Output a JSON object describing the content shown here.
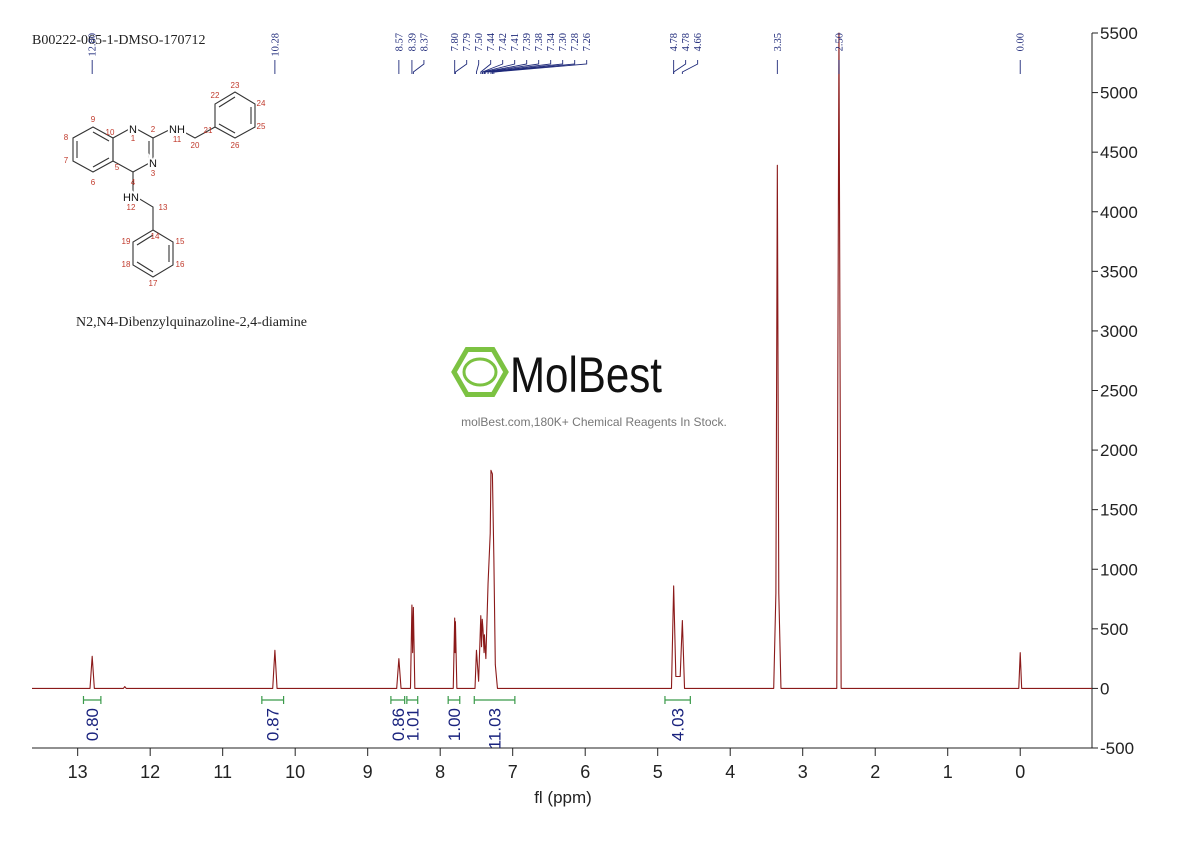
{
  "chart_data": {
    "type": "nmr",
    "title": "B00222-065-1-DMSO-170712",
    "subtitle": "N2,N4-Dibenzylquinazoline-2,4-diamine",
    "x_label": "fl (ppm)",
    "xlim": [
      13.63,
      -0.99
    ],
    "ylim": [
      -500,
      5500
    ],
    "xticks": [
      13,
      12,
      11,
      10,
      9,
      8,
      7,
      6,
      5,
      4,
      3,
      2,
      1,
      0
    ],
    "yticks": [
      -500,
      0,
      500,
      1000,
      1500,
      2000,
      2500,
      3000,
      3500,
      4000,
      4500,
      5000,
      5500
    ],
    "color": "#8b1a1a",
    "x": [
      13.63,
      12.83,
      12.8,
      12.77,
      12.37,
      12.35,
      12.33,
      10.31,
      10.28,
      10.25,
      8.6,
      8.57,
      8.54,
      8.41,
      8.39,
      8.38,
      8.37,
      8.35,
      7.82,
      7.8,
      7.795,
      7.79,
      7.77,
      7.52,
      7.5,
      7.47,
      7.44,
      7.43,
      7.42,
      7.41,
      7.395,
      7.39,
      7.37,
      7.34,
      7.31,
      7.3,
      7.28,
      7.26,
      7.24,
      7.21,
      4.81,
      4.78,
      4.75,
      4.69,
      4.66,
      4.63,
      3.4,
      3.37,
      3.35,
      3.33,
      3.3,
      2.53,
      2.5,
      2.47,
      0.02,
      0,
      -0.02,
      -0.99
    ],
    "values": [
      0,
      0,
      270,
      0,
      0,
      15,
      0,
      0,
      320,
      0,
      0,
      250,
      0,
      0,
      700,
      300,
      680,
      0,
      0,
      590,
      300,
      560,
      0,
      0,
      320,
      60,
      610,
      350,
      580,
      500,
      300,
      450,
      250,
      880,
      1300,
      1830,
      1800,
      1100,
      200,
      0,
      0,
      860,
      100,
      100,
      570,
      0,
      0,
      800,
      4390,
      800,
      0,
      0,
      5500,
      0,
      0,
      300,
      0,
      0
    ],
    "peak_labels": [
      {
        "value": 12.8,
        "label": "12.80"
      },
      {
        "value": 10.28,
        "label": "10.28"
      },
      {
        "value": 8.57,
        "label": "8.57"
      },
      {
        "value": 8.39,
        "label": "8.39"
      },
      {
        "value": 8.37,
        "label": "8.37"
      },
      {
        "value": 7.8,
        "label": "7.80"
      },
      {
        "value": 7.79,
        "label": "7.79"
      },
      {
        "value": 7.5,
        "label": "7.50"
      },
      {
        "value": 7.44,
        "label": "7.44"
      },
      {
        "value": 7.42,
        "label": "7.42"
      },
      {
        "value": 7.41,
        "label": "7.41"
      },
      {
        "value": 7.39,
        "label": "7.39"
      },
      {
        "value": 7.38,
        "label": "7.38"
      },
      {
        "value": 7.34,
        "label": "7.34"
      },
      {
        "value": 7.3,
        "label": "7.30"
      },
      {
        "value": 7.28,
        "label": "7.28"
      },
      {
        "value": 7.26,
        "label": "7.26"
      },
      {
        "value": 4.78,
        "label": "4.78"
      },
      {
        "value": 4.78,
        "label": "4.78"
      },
      {
        "value": 4.66,
        "label": "4.66"
      },
      {
        "value": 3.35,
        "label": "3.35"
      },
      {
        "value": 2.5,
        "label": "2.50"
      },
      {
        "value": 0,
        "label": "0.00"
      }
    ],
    "integrals": {
      "ranges": [
        [
          12.92,
          12.68
        ],
        [
          10.46,
          10.16
        ],
        [
          8.68,
          8.49
        ],
        [
          8.46,
          8.31
        ],
        [
          7.89,
          7.73
        ],
        [
          7.53,
          6.97
        ],
        [
          4.9,
          4.55
        ]
      ],
      "values": [
        0.8,
        0.87,
        0.86,
        1.01,
        1,
        11.03,
        4.03
      ],
      "value_labels": [
        "0.80",
        "0.87",
        "0.86",
        "1.01",
        "1.00",
        "11.03",
        "4.03"
      ],
      "color": "#3a9a4a"
    }
  },
  "watermark": {
    "brand": "MolBest",
    "tagline": "molBest.com,180K+ Chemical Reagents In Stock."
  },
  "structure": {
    "labels": [
      "N",
      "1",
      "2",
      "N",
      "3",
      "4",
      "5",
      "6",
      "7",
      "8",
      "9",
      "10",
      "NH",
      "11",
      "20",
      "21",
      "22",
      "23",
      "24",
      "25",
      "26",
      "HN",
      "12",
      "13",
      "14",
      "15",
      "16",
      "17",
      "18",
      "19"
    ]
  }
}
